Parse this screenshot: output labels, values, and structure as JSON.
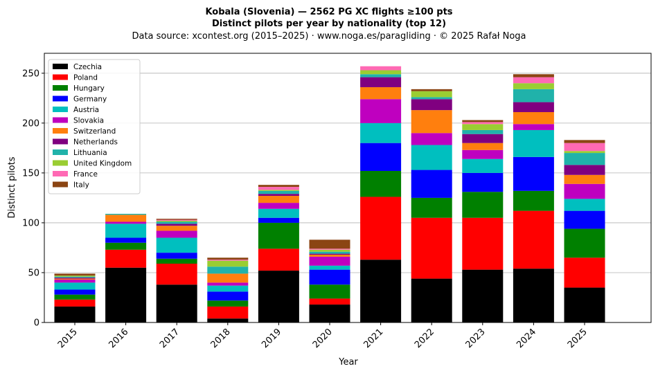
{
  "chart_data": {
    "type": "bar",
    "stacked": true,
    "title_line1": "Kobala (Slovenia)  —  2562 PG XC flights ≥100 pts",
    "title_line2": "Distinct pilots per year by nationality (top 12)",
    "subtitle": "Data source: xcontest.org (2015–2025)  ·  www.noga.es/paragliding  ·  © 2025 Rafał Noga",
    "xlabel": "Year",
    "ylabel": "Distinct pilots",
    "ylim": [
      0,
      270
    ],
    "yticks": [
      0,
      50,
      100,
      150,
      200,
      250
    ],
    "grid": "horizontal",
    "legend_position": "top-left",
    "categories": [
      "2015",
      "2016",
      "2017",
      "2018",
      "2019",
      "2020",
      "2021",
      "2022",
      "2023",
      "2024",
      "2025"
    ],
    "series": [
      {
        "name": "Czechia",
        "color": "#000000",
        "values": [
          16,
          55,
          38,
          4,
          52,
          18,
          63,
          44,
          53,
          54,
          35
        ]
      },
      {
        "name": "Poland",
        "color": "#ff0000",
        "values": [
          7,
          18,
          21,
          12,
          22,
          6,
          63,
          61,
          52,
          58,
          30
        ]
      },
      {
        "name": "Hungary",
        "color": "#008000",
        "values": [
          5,
          7,
          5,
          6,
          26,
          14,
          26,
          20,
          26,
          20,
          29
        ]
      },
      {
        "name": "Germany",
        "color": "#0000ff",
        "values": [
          5,
          5,
          6,
          9,
          5,
          15,
          28,
          28,
          19,
          34,
          18
        ]
      },
      {
        "name": "Austria",
        "color": "#00bfbf",
        "values": [
          7,
          14,
          15,
          6,
          9,
          4,
          20,
          25,
          14,
          27,
          12
        ]
      },
      {
        "name": "Slovakia",
        "color": "#bf00bf",
        "values": [
          3,
          2,
          7,
          3,
          6,
          9,
          24,
          12,
          9,
          6,
          15
        ]
      },
      {
        "name": "Switzerland",
        "color": "#ff7f0e",
        "values": [
          1,
          7,
          5,
          9,
          7,
          2,
          12,
          23,
          7,
          12,
          9
        ]
      },
      {
        "name": "Netherlands",
        "color": "#800080",
        "values": [
          1,
          0,
          2,
          0,
          2,
          1,
          10,
          11,
          9,
          10,
          10
        ]
      },
      {
        "name": "Lithuania",
        "color": "#20b2aa",
        "values": [
          1,
          1,
          2,
          7,
          3,
          2,
          3,
          2,
          4,
          13,
          12
        ]
      },
      {
        "name": "United Kingdom",
        "color": "#9acd32",
        "values": [
          1,
          0,
          1,
          6,
          1,
          2,
          4,
          6,
          6,
          6,
          2
        ]
      },
      {
        "name": "France",
        "color": "#ff69b4",
        "values": [
          0,
          0,
          1,
          1,
          3,
          1,
          4,
          0,
          2,
          6,
          8
        ]
      },
      {
        "name": "Italy",
        "color": "#8b4513",
        "values": [
          2,
          0,
          1,
          2,
          2,
          9,
          0,
          2,
          2,
          3,
          3
        ]
      }
    ]
  }
}
